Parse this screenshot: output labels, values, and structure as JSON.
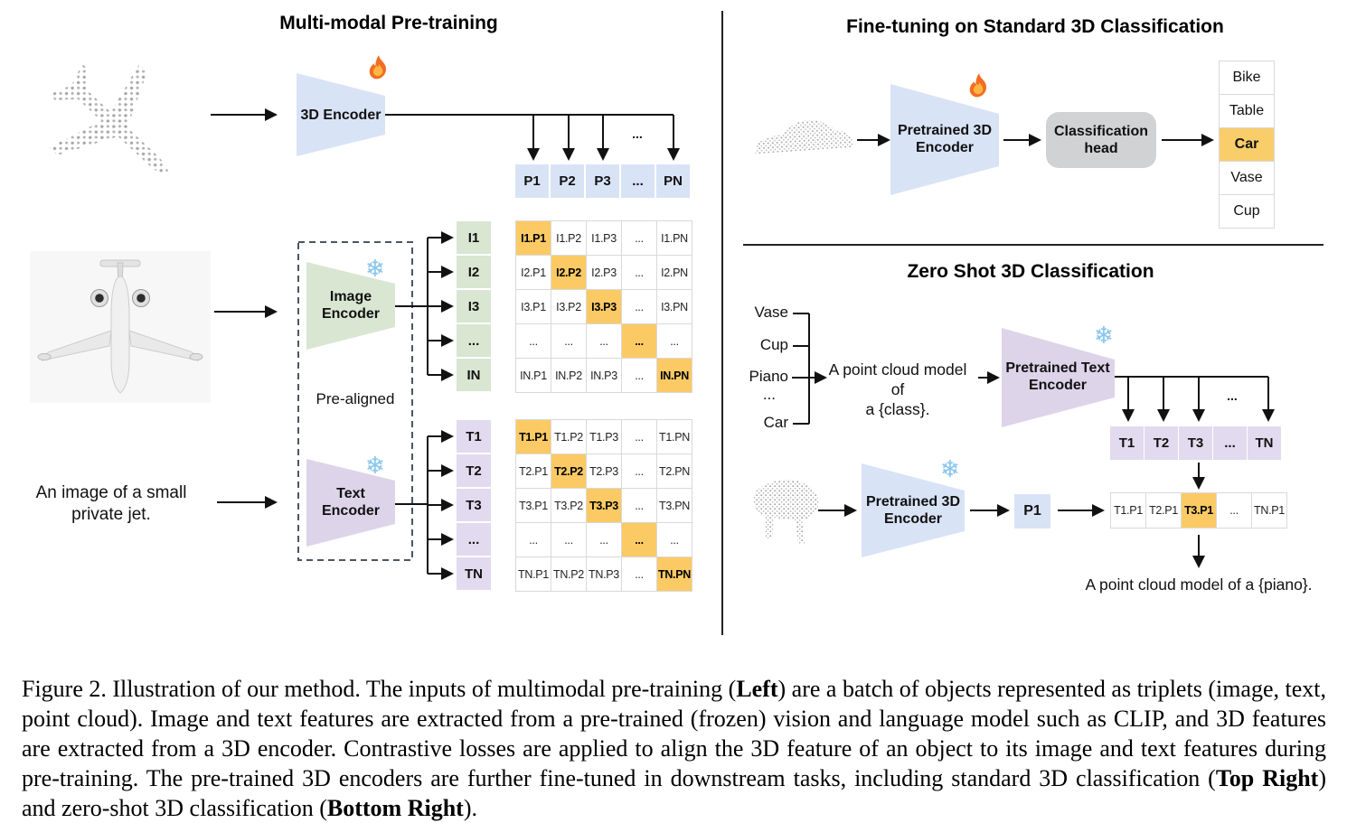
{
  "colors": {
    "accent_blue": "#d9e3f6",
    "accent_green": "#d8e6d2",
    "accent_purple": "#ddd4e9",
    "highlight_orange": "#fbca64",
    "head_gray": "#d1d2d4",
    "cell_border": "#d9d9d9",
    "pointcloud_gray": "#a9a9a9"
  },
  "icons": {
    "trainable": "fire-icon",
    "frozen": "snowflake-icon",
    "snowflake_glyph": "❄"
  },
  "left": {
    "title": "Multi-modal Pre-training",
    "encoder_3d_label": "3D Encoder",
    "branch_dots": "...",
    "p_row": [
      "P1",
      "P2",
      "P3",
      "...",
      "PN"
    ],
    "image_encoder_line1": "Image",
    "image_encoder_line2": "Encoder",
    "text_encoder_line1": "Text",
    "text_encoder_line2": "Encoder",
    "prealigned_label": "Pre-aligned",
    "input_text_line1": "An image of a small",
    "input_text_line2": "private jet.",
    "i_col": [
      "I1",
      "I2",
      "I3",
      "...",
      "IN"
    ],
    "t_col": [
      "T1",
      "T2",
      "T3",
      "...",
      "TN"
    ],
    "i_matrix": [
      {
        "t": "I1.P1",
        "hl": true
      },
      {
        "t": "I1.P2"
      },
      {
        "t": "I1.P3"
      },
      {
        "t": "..."
      },
      {
        "t": "I1.PN"
      },
      {
        "t": "I2.P1"
      },
      {
        "t": "I2.P2",
        "hl": true
      },
      {
        "t": "I2.P3"
      },
      {
        "t": "..."
      },
      {
        "t": "I2.PN"
      },
      {
        "t": "I3.P1"
      },
      {
        "t": "I3.P2"
      },
      {
        "t": "I3.P3",
        "hl": true
      },
      {
        "t": "..."
      },
      {
        "t": "I3.PN"
      },
      {
        "t": "..."
      },
      {
        "t": "..."
      },
      {
        "t": "..."
      },
      {
        "t": "...",
        "hl": true
      },
      {
        "t": "..."
      },
      {
        "t": "IN.P1"
      },
      {
        "t": "IN.P2"
      },
      {
        "t": "IN.P3"
      },
      {
        "t": "..."
      },
      {
        "t": "IN.PN",
        "hl": true
      }
    ],
    "t_matrix": [
      {
        "t": "T1.P1",
        "hl": true
      },
      {
        "t": "T1.P2"
      },
      {
        "t": "T1.P3"
      },
      {
        "t": "..."
      },
      {
        "t": "T1.PN"
      },
      {
        "t": "T2.P1"
      },
      {
        "t": "T2.P2",
        "hl": true
      },
      {
        "t": "T2.P3"
      },
      {
        "t": "..."
      },
      {
        "t": "T2.PN"
      },
      {
        "t": "T3.P1"
      },
      {
        "t": "T3.P2"
      },
      {
        "t": "T3.P3",
        "hl": true
      },
      {
        "t": "..."
      },
      {
        "t": "T3.PN"
      },
      {
        "t": "..."
      },
      {
        "t": "..."
      },
      {
        "t": "..."
      },
      {
        "t": "...",
        "hl": true
      },
      {
        "t": "..."
      },
      {
        "t": "TN.P1"
      },
      {
        "t": "TN.P2"
      },
      {
        "t": "TN.P3"
      },
      {
        "t": "..."
      },
      {
        "t": "TN.PN",
        "hl": true
      }
    ]
  },
  "top_right": {
    "title": "Fine-tuning on Standard 3D Classification",
    "encoder_line1": "Pretrained 3D",
    "encoder_line2": "Encoder",
    "head_line1": "Classification",
    "head_line2": "head",
    "classes": [
      {
        "t": "Bike"
      },
      {
        "t": "Table"
      },
      {
        "t": "Car",
        "hl": true
      },
      {
        "t": "Vase"
      },
      {
        "t": "Cup"
      }
    ]
  },
  "bottom_right": {
    "title": "Zero Shot 3D Classification",
    "class_list": [
      "Vase",
      "Cup",
      "Piano",
      "...",
      "Car"
    ],
    "prompt_line1": "A point cloud model of",
    "prompt_line2": "a {class}.",
    "text_encoder_line1": "Pretrained Text",
    "text_encoder_line2": "Encoder",
    "branch_dots": "...",
    "t_row": [
      "T1",
      "T2",
      "T3",
      "...",
      "TN"
    ],
    "encoder_3d_line1": "Pretrained 3D",
    "encoder_3d_line2": "Encoder",
    "p1_label": "P1",
    "result_row": [
      {
        "t": "T1.P1"
      },
      {
        "t": "T2.P1"
      },
      {
        "t": "T3.P1",
        "hl": true
      },
      {
        "t": "..."
      },
      {
        "t": "TN.P1"
      }
    ],
    "output_text": "A point cloud model of a {piano}."
  },
  "caption": {
    "seg0": "Figure 2. Illustration of our method. The inputs of multimodal pre-training (",
    "seg1": "Left",
    "seg2": ") are a batch of objects represented as triplets (image, text, point cloud). Image and text features are extracted from a pre-trained (frozen) vision and language model such as CLIP, and 3D features are extracted from a 3D encoder. Contrastive losses are applied to align the 3D feature of an object to its image and text features during pre-training. The pre-trained 3D encoders are further fine-tuned in downstream tasks, including standard 3D classification (",
    "seg3": "Top Right",
    "seg4": ") and zero-shot 3D classification (",
    "seg5": "Bottom Right",
    "seg6": ")."
  }
}
